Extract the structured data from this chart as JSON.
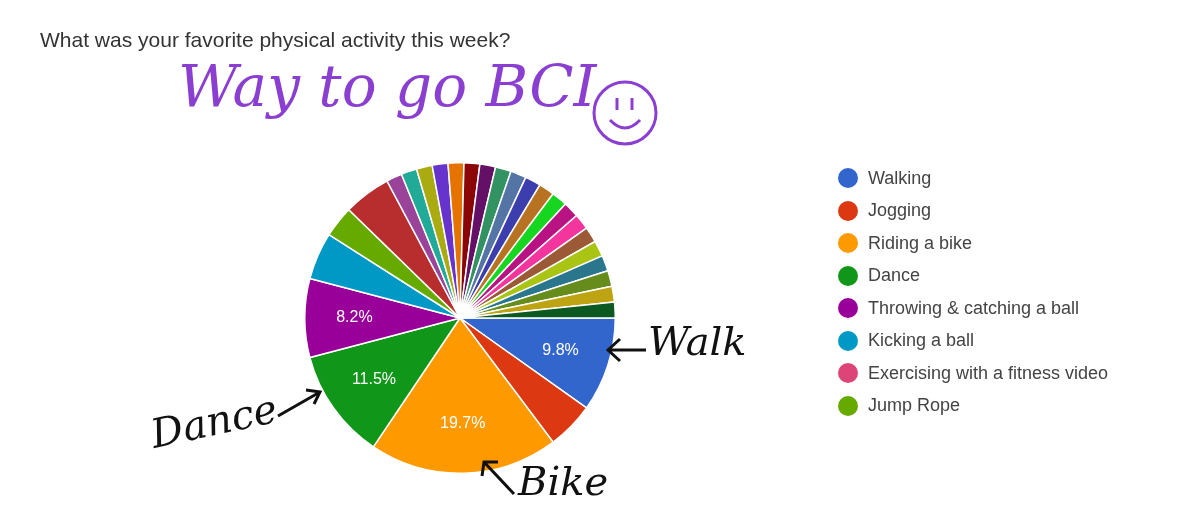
{
  "chart_data": {
    "type": "pie",
    "title": "What was your favorite physical activity this week?",
    "categories": [
      "Walking",
      "Jogging",
      "Riding a bike",
      "Dance",
      "Throwing & catching a ball",
      "Kicking a ball",
      "Exercising with a fitness video",
      "Jump Rope",
      null,
      null,
      null,
      null,
      null,
      null,
      null,
      null,
      null,
      null,
      null,
      null,
      null,
      null,
      null,
      null,
      null,
      null,
      null,
      null,
      null
    ],
    "values": [
      9.84,
      4.92,
      19.67,
      11.48,
      8.2,
      4.92,
      0,
      3.28,
      4.92,
      1.64,
      1.64,
      1.64,
      1.64,
      1.64,
      1.64,
      1.64,
      1.64,
      1.64,
      1.64,
      1.64,
      1.64,
      1.64,
      1.64,
      1.64,
      1.64,
      1.64,
      1.64,
      1.64,
      1.64
    ],
    "value_labels": [
      "9.8%",
      null,
      "19.7%",
      "11.5%",
      "8.2%",
      null,
      null,
      null,
      null,
      null,
      null,
      null,
      null,
      null,
      null,
      null,
      null,
      null,
      null,
      null,
      null,
      null,
      null,
      null,
      null,
      null,
      null,
      null,
      null
    ],
    "colors": [
      "#3366cc",
      "#dc3912",
      "#ff9900",
      "#109618",
      "#990099",
      "#0099c6",
      "#dd4477",
      "#66aa00",
      "#b82e2e",
      "#994499",
      "#22aa99",
      "#aaaa11",
      "#6633cc",
      "#e67300",
      "#8b0707",
      "#651067",
      "#329262",
      "#5574a6",
      "#3b3eac",
      "#b77322",
      "#16d620",
      "#b91383",
      "#f4359e",
      "#9c5935",
      "#a9c413",
      "#2a778d",
      "#668d1c",
      "#bea413",
      "#0c5922"
    ],
    "legend": "right",
    "annotations": [
      "Way to go BCI",
      "Walk",
      "Dance",
      "Bike"
    ]
  }
}
